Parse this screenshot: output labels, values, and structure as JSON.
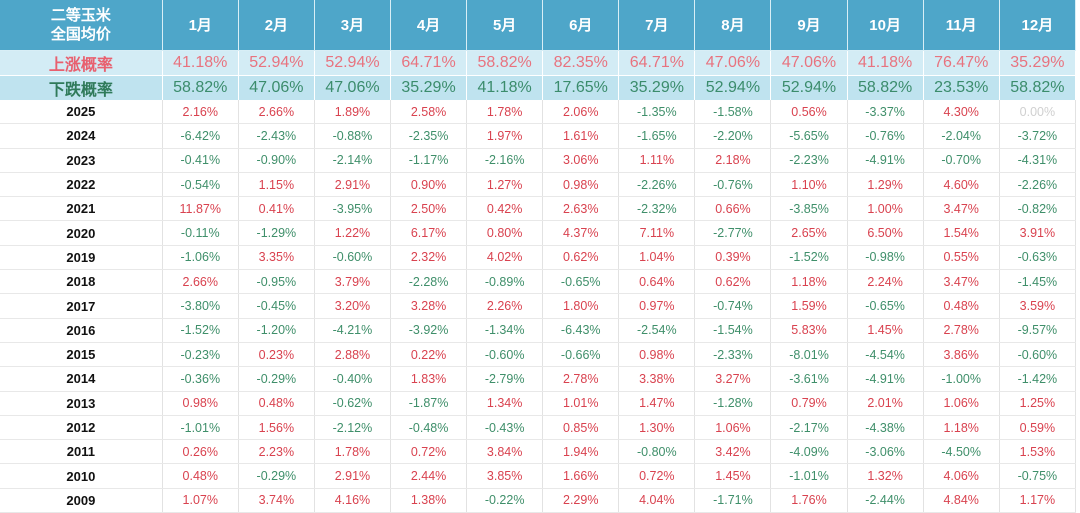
{
  "header": {
    "corner_line1": "二等玉米",
    "corner_line2": "全国均价",
    "months": [
      "1月",
      "2月",
      "3月",
      "4月",
      "5月",
      "6月",
      "7月",
      "8月",
      "9月",
      "10月",
      "11月",
      "12月"
    ]
  },
  "rise": {
    "label": "上涨概率",
    "values": [
      "41.18%",
      "52.94%",
      "52.94%",
      "64.71%",
      "58.82%",
      "82.35%",
      "64.71%",
      "47.06%",
      "47.06%",
      "41.18%",
      "76.47%",
      "35.29%"
    ]
  },
  "fall": {
    "label": "下跌概率",
    "values": [
      "58.82%",
      "47.06%",
      "47.06%",
      "35.29%",
      "41.18%",
      "17.65%",
      "35.29%",
      "52.94%",
      "52.94%",
      "58.82%",
      "23.53%",
      "58.82%"
    ]
  },
  "colors": {
    "header_bg": "#4ea6c9",
    "positive": "#d9424f",
    "negative": "#3f8f6a"
  },
  "rows": [
    {
      "year": "2025",
      "values": [
        "2.16%",
        "2.66%",
        "1.89%",
        "2.58%",
        "1.78%",
        "2.06%",
        "-1.35%",
        "-1.58%",
        "0.56%",
        "-3.37%",
        "4.30%",
        "0.00%"
      ]
    },
    {
      "year": "2024",
      "values": [
        "-6.42%",
        "-2.43%",
        "-0.88%",
        "-2.35%",
        "1.97%",
        "1.61%",
        "-1.65%",
        "-2.20%",
        "-5.65%",
        "-0.76%",
        "-2.04%",
        "-3.72%"
      ]
    },
    {
      "year": "2023",
      "values": [
        "-0.41%",
        "-0.90%",
        "-2.14%",
        "-1.17%",
        "-2.16%",
        "3.06%",
        "1.11%",
        "2.18%",
        "-2.23%",
        "-4.91%",
        "-0.70%",
        "-4.31%"
      ]
    },
    {
      "year": "2022",
      "values": [
        "-0.54%",
        "1.15%",
        "2.91%",
        "0.90%",
        "1.27%",
        "0.98%",
        "-2.26%",
        "-0.76%",
        "1.10%",
        "1.29%",
        "4.60%",
        "-2.26%"
      ]
    },
    {
      "year": "2021",
      "values": [
        "11.87%",
        "0.41%",
        "-3.95%",
        "2.50%",
        "0.42%",
        "2.63%",
        "-2.32%",
        "0.66%",
        "-3.85%",
        "1.00%",
        "3.47%",
        "-0.82%"
      ]
    },
    {
      "year": "2020",
      "values": [
        "-0.11%",
        "-1.29%",
        "1.22%",
        "6.17%",
        "0.80%",
        "4.37%",
        "7.11%",
        "-2.77%",
        "2.65%",
        "6.50%",
        "1.54%",
        "3.91%"
      ]
    },
    {
      "year": "2019",
      "values": [
        "-1.06%",
        "3.35%",
        "-0.60%",
        "2.32%",
        "4.02%",
        "0.62%",
        "1.04%",
        "0.39%",
        "-1.52%",
        "-0.98%",
        "0.55%",
        "-0.63%"
      ]
    },
    {
      "year": "2018",
      "values": [
        "2.66%",
        "-0.95%",
        "3.79%",
        "-2.28%",
        "-0.89%",
        "-0.65%",
        "0.64%",
        "0.62%",
        "1.18%",
        "2.24%",
        "3.47%",
        "-1.45%"
      ]
    },
    {
      "year": "2017",
      "values": [
        "-3.80%",
        "-0.45%",
        "3.20%",
        "3.28%",
        "2.26%",
        "1.80%",
        "0.97%",
        "-0.74%",
        "1.59%",
        "-0.65%",
        "0.48%",
        "3.59%"
      ]
    },
    {
      "year": "2016",
      "values": [
        "-1.52%",
        "-1.20%",
        "-4.21%",
        "-3.92%",
        "-1.34%",
        "-6.43%",
        "-2.54%",
        "-1.54%",
        "5.83%",
        "1.45%",
        "2.78%",
        "-9.57%"
      ]
    },
    {
      "year": "2015",
      "values": [
        "-0.23%",
        "0.23%",
        "2.88%",
        "0.22%",
        "-0.60%",
        "-0.66%",
        "0.98%",
        "-2.33%",
        "-8.01%",
        "-4.54%",
        "3.86%",
        "-0.60%"
      ]
    },
    {
      "year": "2014",
      "values": [
        "-0.36%",
        "-0.29%",
        "-0.40%",
        "1.83%",
        "-2.79%",
        "2.78%",
        "3.38%",
        "3.27%",
        "-3.61%",
        "-4.91%",
        "-1.00%",
        "-1.42%"
      ]
    },
    {
      "year": "2013",
      "values": [
        "0.98%",
        "0.48%",
        "-0.62%",
        "-1.87%",
        "1.34%",
        "1.01%",
        "1.47%",
        "-1.28%",
        "0.79%",
        "2.01%",
        "1.06%",
        "1.25%"
      ]
    },
    {
      "year": "2012",
      "values": [
        "-1.01%",
        "1.56%",
        "-2.12%",
        "-0.48%",
        "-0.43%",
        "0.85%",
        "1.30%",
        "1.06%",
        "-2.17%",
        "-4.38%",
        "1.18%",
        "0.59%"
      ]
    },
    {
      "year": "2011",
      "values": [
        "0.26%",
        "2.23%",
        "1.78%",
        "0.72%",
        "3.84%",
        "1.94%",
        "-0.80%",
        "3.42%",
        "-4.09%",
        "-3.06%",
        "-4.50%",
        "1.53%"
      ]
    },
    {
      "year": "2010",
      "values": [
        "0.48%",
        "-0.29%",
        "2.91%",
        "2.44%",
        "3.85%",
        "1.66%",
        "0.72%",
        "1.45%",
        "-1.01%",
        "1.32%",
        "4.06%",
        "-0.75%"
      ]
    },
    {
      "year": "2009",
      "values": [
        "1.07%",
        "3.74%",
        "4.16%",
        "1.38%",
        "-0.22%",
        "2.29%",
        "4.04%",
        "-1.71%",
        "1.76%",
        "-2.44%",
        "4.84%",
        "1.17%"
      ]
    }
  ]
}
